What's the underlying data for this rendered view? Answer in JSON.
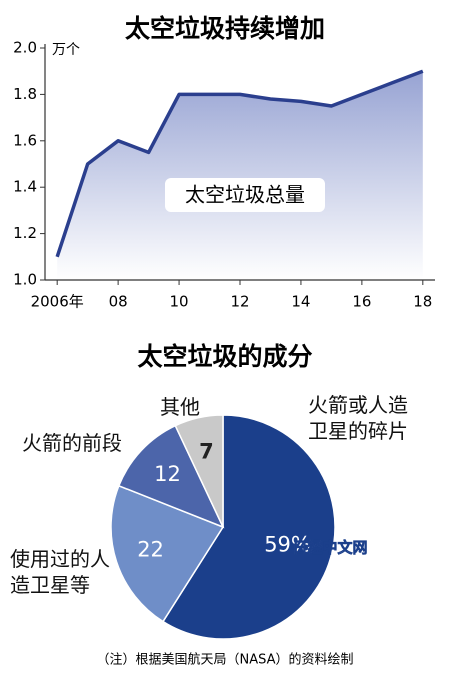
{
  "chart_data": [
    {
      "type": "area",
      "title": "太空垃圾持续增加",
      "y_unit": "万个",
      "annotation": "太空垃圾总量",
      "x": [
        2006,
        2007,
        2008,
        2009,
        2010,
        2011,
        2012,
        2013,
        2014,
        2015,
        2016,
        2017,
        2018
      ],
      "series": [
        {
          "name": "太空垃圾总量",
          "color": "#2b3f8e",
          "values": [
            1.1,
            1.5,
            1.6,
            1.55,
            1.8,
            1.8,
            1.8,
            1.78,
            1.77,
            1.75,
            1.8,
            1.85,
            1.9
          ]
        }
      ],
      "xlim": [
        2005.6,
        2018.4
      ],
      "xticks": [
        {
          "value": 2006,
          "label": "2006年"
        },
        {
          "value": 2008,
          "label": "08"
        },
        {
          "value": 2010,
          "label": "10"
        },
        {
          "value": 2012,
          "label": "12"
        },
        {
          "value": 2014,
          "label": "14"
        },
        {
          "value": 2016,
          "label": "16"
        },
        {
          "value": 2018,
          "label": "18"
        }
      ],
      "ylim": [
        1,
        2
      ],
      "yticks": [
        {
          "value": 1,
          "label": "1.0"
        },
        1.2,
        1.4,
        1.6,
        1.8,
        {
          "value": 2,
          "label": "2.0"
        }
      ]
    },
    {
      "type": "pie",
      "title": "太空垃圾的成分",
      "categories": [
        "火箭或人造卫星的碎片",
        "使用过的人造卫星等",
        "火箭的前段",
        "其他"
      ],
      "values": [
        59,
        22,
        12,
        7
      ],
      "value_labels": [
        "59%",
        "22",
        "12",
        "7"
      ],
      "colors": [
        "#1b3f8b",
        "#6f8ec8",
        "#4c65aa",
        "#c9c9c9"
      ],
      "note": "（注）根据美国航天局（NASA）的资料绘制",
      "watermark": "日经中文网"
    }
  ]
}
